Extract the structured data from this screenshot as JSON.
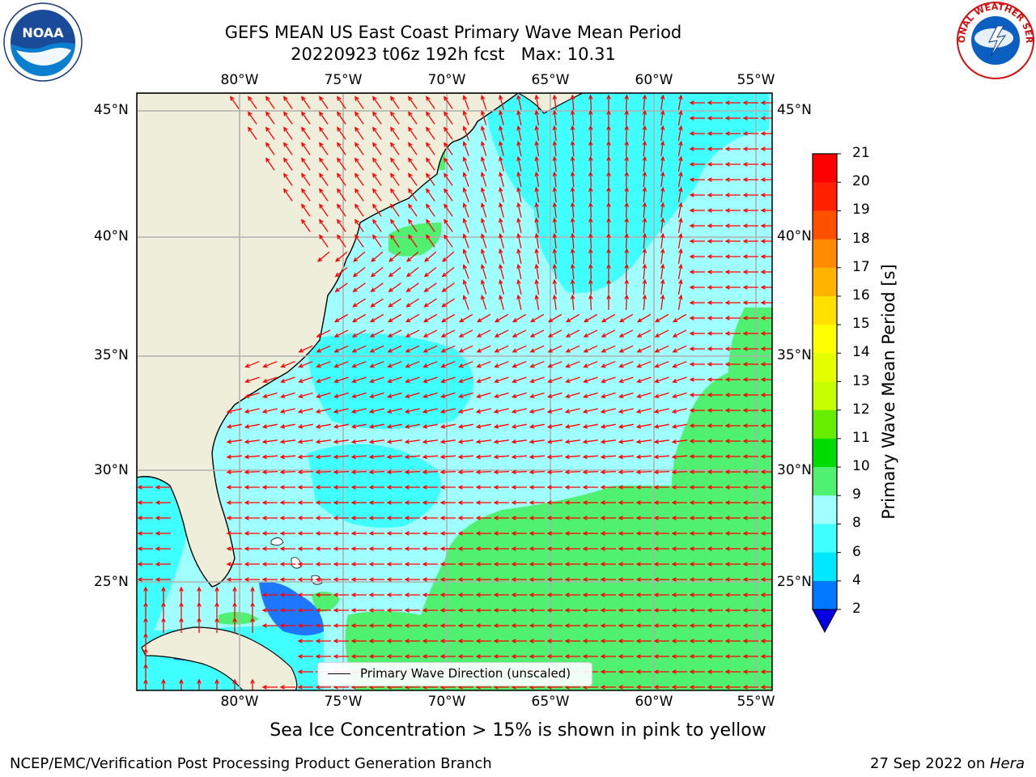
{
  "header": {
    "title_line1": "GEFS MEAN US East Coast Primary Wave Mean Period",
    "title_line2": "20220923 t06z 192h fcst   Max: 10.31"
  },
  "logos": {
    "left": "noaa-logo",
    "right": "national-weather-service-logo",
    "left_text": "NOAA",
    "right_text": "NATIONAL WEATHER SERVICE"
  },
  "map": {
    "lon_ticks": [
      "80°W",
      "75°W",
      "70°W",
      "65°W",
      "60°W",
      "55°W"
    ],
    "lat_ticks": [
      "45°N",
      "40°N",
      "35°N",
      "30°N",
      "25°N"
    ],
    "colors": {
      "land": "#efeedb",
      "ocean_6_8": "#40ffff",
      "ocean_8_9": "#a0ffff",
      "ocean_9_10": "#50f070",
      "ocean_4_6": "#00e0ff",
      "ocean_2_4": "#1e78ff",
      "arrows": "#ff0000",
      "grid": "#b0b0b0"
    },
    "legend_label": "Primary Wave Direction (unscaled)"
  },
  "colorbar": {
    "title": "Primary Wave Mean Period [s]",
    "tick_labels": [
      "2",
      "4",
      "6",
      "8",
      "9",
      "10",
      "11",
      "12",
      "13",
      "14",
      "15",
      "16",
      "17",
      "18",
      "19",
      "20",
      "21"
    ],
    "colors": [
      "#0000e0",
      "#0078ff",
      "#00e8ff",
      "#40ffff",
      "#a0ffff",
      "#50f070",
      "#00dd00",
      "#66ee00",
      "#c8ff00",
      "#e6ff00",
      "#ffff00",
      "#ffe000",
      "#ffb400",
      "#ff8c00",
      "#ff5000",
      "#ff2000",
      "#ff0000"
    ]
  },
  "chart_data": {
    "type": "heatmap",
    "title": "GEFS MEAN US East Coast Primary Wave Mean Period",
    "subtitle": "20220923 t06z 192h fcst   Max: 10.31",
    "colorbar_label": "Primary Wave Mean Period [s]",
    "colorbar_levels": [
      2,
      4,
      6,
      8,
      9,
      10,
      11,
      12,
      13,
      14,
      15,
      16,
      17,
      18,
      19,
      20,
      21
    ],
    "lon_range": [
      "85°W",
      "54°W"
    ],
    "lat_range": [
      "20.5°N",
      "46°N"
    ],
    "max_value": 10.31
  },
  "footer": {
    "note": "Sea Ice Concentration > 15% is shown in pink to yellow",
    "left": "NCEP/EMC/Verification Post Processing Product Generation Branch",
    "right_date": "27 Sep 2022 on ",
    "right_host": "Hera"
  }
}
